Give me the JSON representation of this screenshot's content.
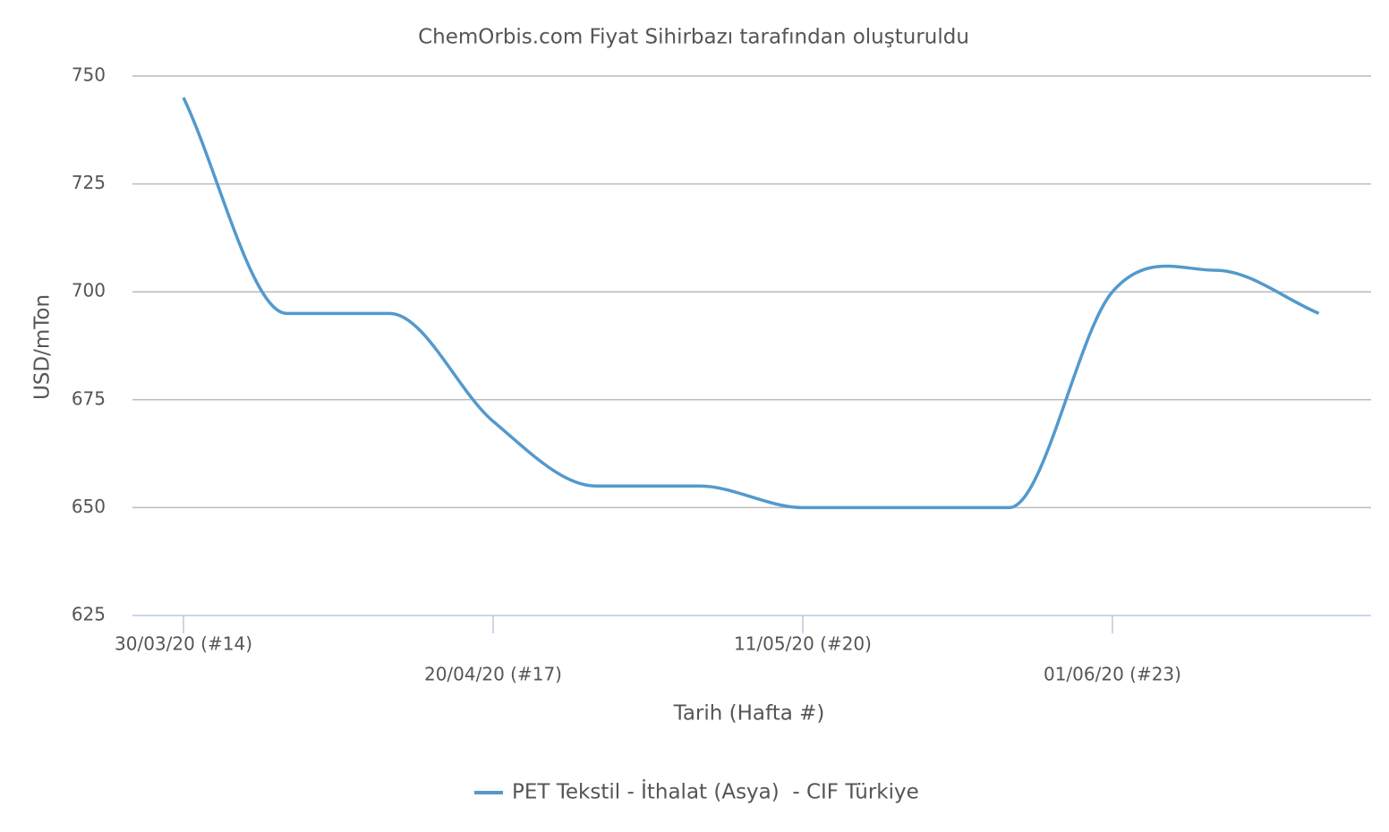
{
  "chart_data": {
    "type": "line",
    "title": "ChemOrbis.com Fiyat Sihirbazı tarafından oluşturuldu",
    "x_label": "Tarih (Hafta #)",
    "y_label": "USD/mTon",
    "categories": [
      "30/03/20 (#14)",
      null,
      null,
      "20/04/20 (#17)",
      null,
      null,
      "11/05/20 (#20)",
      null,
      null,
      "01/06/20 (#23)",
      null,
      null
    ],
    "series": [
      {
        "name": "PET Tekstil - İthalat (Asya)  - CIF Türkiye",
        "color": "#5399cd",
        "values": [
          745,
          695,
          695,
          670,
          655,
          655,
          650,
          650,
          650,
          700,
          705,
          695
        ]
      }
    ],
    "ylim": [
      625,
      750
    ],
    "yticks": [
      625,
      650,
      675,
      700,
      725,
      750
    ],
    "grid": true
  }
}
